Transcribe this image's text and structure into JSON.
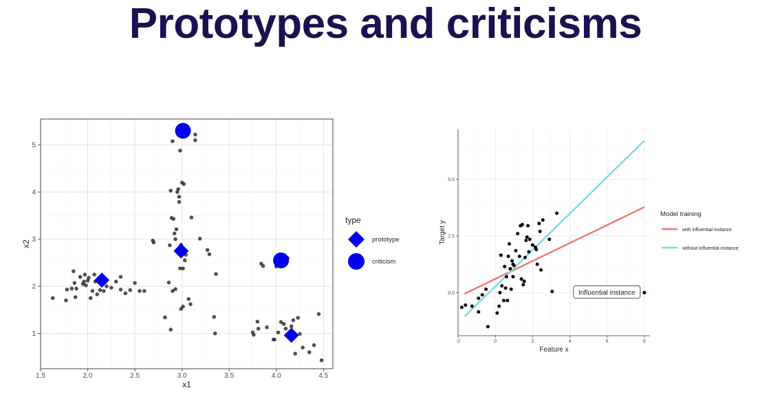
{
  "page": {
    "title": "Prototypes and criticisms"
  },
  "colors": {
    "title": "#1a1150",
    "point": "#333333",
    "marker": "#0000ee",
    "line_with": "#f0766d",
    "line_without": "#7dd9dd"
  },
  "chart_data": [
    {
      "type": "scatter",
      "xlabel": "x1",
      "ylabel": "x2",
      "xlim": [
        1.5,
        4.6
      ],
      "ylim": [
        0.25,
        5.55
      ],
      "x_ticks": [
        "1.5",
        "2.0",
        "2.5",
        "3.0",
        "3.5",
        "4.0",
        "4.5"
      ],
      "x_tick_values": [
        1.5,
        2.0,
        2.5,
        3.0,
        3.5,
        4.0,
        4.5
      ],
      "y_ticks": [
        "1",
        "2",
        "3",
        "4",
        "5"
      ],
      "y_tick_values": [
        1,
        2,
        3,
        4,
        5
      ],
      "grid": true,
      "legend": {
        "title": "type",
        "position": "right",
        "entries": [
          "prototype",
          "criticism"
        ]
      },
      "points": [
        [
          1.63,
          1.75
        ],
        [
          1.77,
          1.7
        ],
        [
          1.78,
          1.93
        ],
        [
          1.83,
          1.95
        ],
        [
          1.85,
          2.32
        ],
        [
          1.86,
          2.07
        ],
        [
          1.87,
          1.77
        ],
        [
          1.88,
          1.95
        ],
        [
          1.92,
          2.2
        ],
        [
          1.95,
          2.05
        ],
        [
          1.96,
          2.1
        ],
        [
          1.97,
          2.25
        ],
        [
          1.98,
          2.02
        ],
        [
          2.0,
          2.12
        ],
        [
          2.01,
          2.18
        ],
        [
          2.03,
          1.75
        ],
        [
          2.05,
          1.9
        ],
        [
          2.07,
          2.25
        ],
        [
          2.08,
          2.1
        ],
        [
          2.1,
          1.83
        ],
        [
          2.13,
          1.92
        ],
        [
          2.17,
          1.9
        ],
        [
          2.2,
          2.0
        ],
        [
          2.25,
          1.97
        ],
        [
          2.3,
          2.1
        ],
        [
          2.35,
          1.93
        ],
        [
          2.4,
          1.85
        ],
        [
          2.45,
          1.92
        ],
        [
          2.5,
          2.07
        ],
        [
          2.55,
          1.9
        ],
        [
          2.6,
          1.9
        ],
        [
          2.35,
          2.2
        ],
        [
          2.69,
          2.97
        ],
        [
          2.7,
          2.93
        ],
        [
          2.82,
          1.34
        ],
        [
          2.86,
          2.08
        ],
        [
          2.87,
          2.87
        ],
        [
          2.88,
          1.08
        ],
        [
          2.88,
          4.03
        ],
        [
          2.89,
          3.45
        ],
        [
          2.9,
          1.9
        ],
        [
          2.9,
          5.08
        ],
        [
          2.91,
          3.43
        ],
        [
          2.92,
          3.12
        ],
        [
          2.93,
          3.0
        ],
        [
          2.93,
          1.94
        ],
        [
          2.94,
          3.21
        ],
        [
          2.95,
          4.0
        ],
        [
          2.96,
          4.06
        ],
        [
          2.97,
          3.9
        ],
        [
          2.97,
          3.79
        ],
        [
          2.98,
          2.38
        ],
        [
          2.99,
          2.88
        ],
        [
          2.99,
          1.52
        ],
        [
          2.98,
          4.88
        ],
        [
          3.0,
          4.2
        ],
        [
          3.01,
          2.38
        ],
        [
          3.01,
          1.57
        ],
        [
          3.02,
          4.17
        ],
        [
          3.03,
          2.55
        ],
        [
          3.04,
          2.67
        ],
        [
          3.07,
          1.73
        ],
        [
          3.09,
          1.62
        ],
        [
          3.1,
          3.46
        ],
        [
          3.14,
          5.22
        ],
        [
          3.14,
          5.1
        ],
        [
          3.19,
          3.01
        ],
        [
          3.27,
          2.77
        ],
        [
          3.29,
          2.68
        ],
        [
          3.34,
          1.35
        ],
        [
          3.35,
          1.0
        ],
        [
          3.36,
          2.26
        ],
        [
          3.75,
          1.02
        ],
        [
          3.76,
          0.97
        ],
        [
          3.8,
          1.25
        ],
        [
          3.81,
          1.1
        ],
        [
          3.84,
          2.48
        ],
        [
          3.86,
          2.43
        ],
        [
          3.9,
          1.13
        ],
        [
          3.97,
          0.87
        ],
        [
          3.98,
          0.87
        ],
        [
          4.0,
          2.42
        ],
        [
          4.02,
          1.02
        ],
        [
          4.05,
          1.24
        ],
        [
          4.08,
          1.2
        ],
        [
          4.1,
          1.1
        ],
        [
          4.12,
          2.6
        ],
        [
          4.16,
          1.15
        ],
        [
          4.18,
          1.28
        ],
        [
          4.2,
          0.57
        ],
        [
          4.23,
          1.33
        ],
        [
          4.25,
          0.99
        ],
        [
          4.28,
          0.7
        ],
        [
          4.35,
          0.6
        ],
        [
          4.45,
          1.41
        ],
        [
          4.48,
          0.43
        ],
        [
          4.4,
          0.75
        ]
      ],
      "prototypes": [
        [
          2.15,
          2.13
        ],
        [
          2.99,
          2.75
        ],
        [
          4.16,
          0.96
        ]
      ],
      "criticisms": [
        [
          3.01,
          5.3
        ],
        [
          4.05,
          2.55
        ]
      ]
    },
    {
      "type": "scatter",
      "xlabel": "Feature x",
      "ylabel": "Target y",
      "xlim": [
        -2,
        8.3
      ],
      "ylim": [
        -1.9,
        7.2
      ],
      "x_ticks": [
        "-2",
        "0",
        "2",
        "4",
        "6",
        "8"
      ],
      "x_tick_values": [
        -2,
        0,
        2,
        4,
        6,
        8
      ],
      "y_ticks": [
        "0.0",
        "2.5",
        "5.0"
      ],
      "y_tick_values": [
        0,
        2.5,
        5
      ],
      "grid": true,
      "legend": {
        "title": "Model training",
        "position": "right"
      },
      "series": [
        {
          "name": "with influential instance",
          "x": [
            -1.65,
            8
          ],
          "y": [
            -0.05,
            3.77
          ]
        },
        {
          "name": "without influential instance",
          "x": [
            -1.65,
            8
          ],
          "y": [
            -1.05,
            6.7
          ]
        }
      ],
      "points": [
        [
          -1.8,
          -0.65
        ],
        [
          -1.6,
          -0.55
        ],
        [
          -1.25,
          -0.6
        ],
        [
          -0.9,
          -0.85
        ],
        [
          -0.9,
          -0.25
        ],
        [
          -0.7,
          -0.1
        ],
        [
          -0.5,
          0.15
        ],
        [
          -0.4,
          -1.5
        ],
        [
          0.1,
          -0.9
        ],
        [
          0.2,
          -0.6
        ],
        [
          0.25,
          0.0
        ],
        [
          0.3,
          1.65
        ],
        [
          0.35,
          0.3
        ],
        [
          0.45,
          -0.35
        ],
        [
          0.5,
          1.15
        ],
        [
          0.55,
          0.2
        ],
        [
          0.6,
          0.7
        ],
        [
          0.65,
          -0.35
        ],
        [
          0.7,
          1.6
        ],
        [
          0.75,
          2.15
        ],
        [
          0.8,
          1.05
        ],
        [
          0.85,
          0.15
        ],
        [
          0.9,
          1.4
        ],
        [
          0.95,
          1.25
        ],
        [
          1.0,
          1.2
        ],
        [
          1.1,
          1.85
        ],
        [
          1.2,
          2.6
        ],
        [
          1.3,
          1.6
        ],
        [
          1.35,
          2.95
        ],
        [
          1.4,
          0.6
        ],
        [
          1.45,
          3.0
        ],
        [
          1.5,
          0.35
        ],
        [
          1.55,
          0.5
        ],
        [
          1.6,
          1.55
        ],
        [
          1.65,
          2.3
        ],
        [
          1.7,
          2.45
        ],
        [
          1.75,
          2.95
        ],
        [
          1.8,
          1.8
        ],
        [
          1.85,
          2.35
        ],
        [
          2.0,
          2.1
        ],
        [
          2.15,
          2.0
        ],
        [
          2.25,
          1.25
        ],
        [
          2.35,
          3.05
        ],
        [
          2.4,
          2.7
        ],
        [
          2.45,
          1.0
        ],
        [
          2.55,
          3.2
        ],
        [
          2.9,
          2.35
        ],
        [
          3.05,
          0.05
        ],
        [
          3.3,
          3.5
        ],
        [
          2.2,
          1.9
        ],
        [
          0.95,
          0.7
        ],
        [
          8.0,
          0.0
        ]
      ],
      "annotation": {
        "text": "Influential instance",
        "x": 8.0,
        "y": 0.0
      }
    }
  ]
}
